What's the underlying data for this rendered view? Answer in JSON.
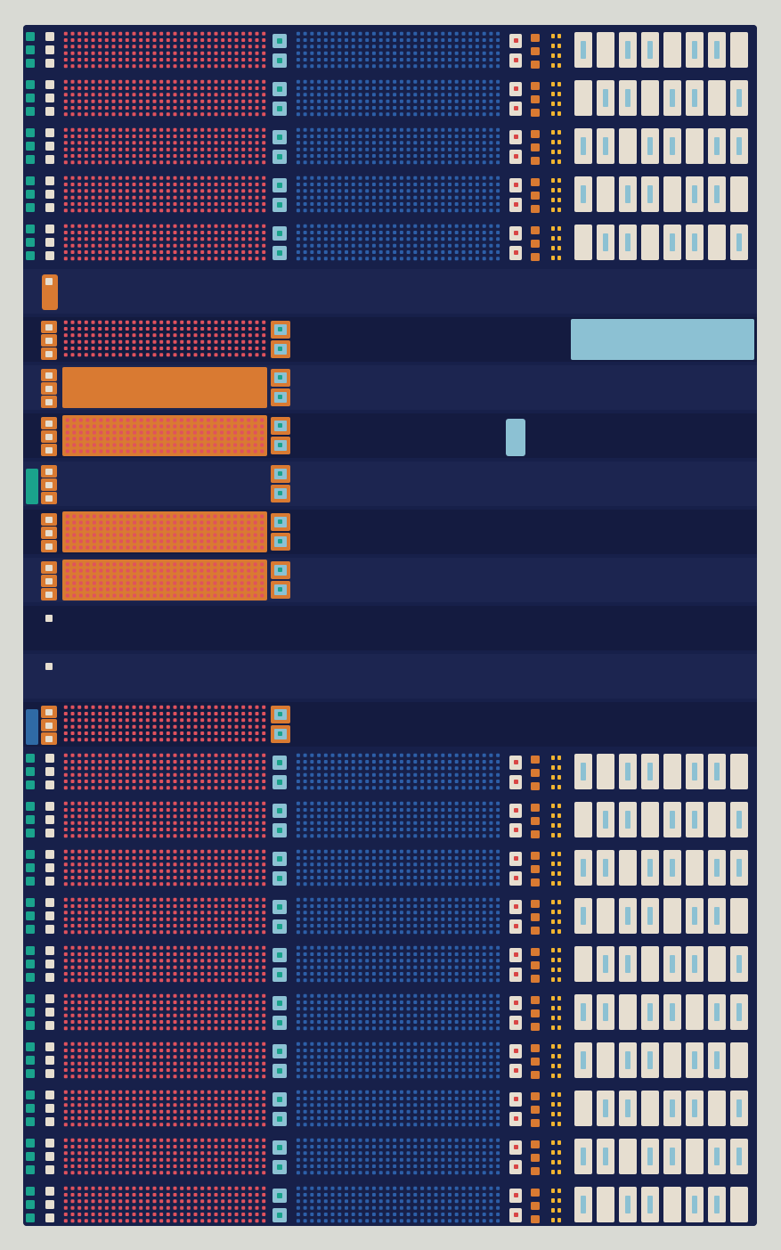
{
  "artwork": {
    "background_color": "#d9dad4",
    "rug_color": "#17204a",
    "palette": {
      "navy": "#17204a",
      "navy_dark": "#141b40",
      "navy_band": "#1c2550",
      "coral": "#e0525e",
      "blue_dot": "#2d5fa8",
      "teal": "#1aa38c",
      "cream": "#e6ded0",
      "light_blue": "#8cc1d3",
      "orange": "#d97a32",
      "yellow": "#f2b531",
      "red_dot": "#d84545",
      "steel_blue": "#2f6aa5"
    },
    "rows": [
      {
        "type": "pattern"
      },
      {
        "type": "pattern"
      },
      {
        "type": "pattern"
      },
      {
        "type": "pattern"
      },
      {
        "type": "pattern"
      },
      {
        "type": "plain",
        "orange_tab": true
      },
      {
        "type": "accent",
        "coral_dots": true,
        "light_blue_bar": true
      },
      {
        "type": "accent",
        "orange_bar": true
      },
      {
        "type": "accent",
        "orange_bar": true,
        "coral_dots_on_orange": true,
        "light_blue_tab": true
      },
      {
        "type": "accent",
        "teal_tab": true
      },
      {
        "type": "accent",
        "orange_bar": true,
        "coral_dots_on_orange": true
      },
      {
        "type": "accent",
        "orange_bar": true,
        "coral_dots_on_orange": true
      },
      {
        "type": "plain"
      },
      {
        "type": "plain",
        "orange_right_squares": false
      },
      {
        "type": "accent",
        "coral_dots": true,
        "blue_tab": true
      },
      {
        "type": "pattern"
      },
      {
        "type": "pattern"
      },
      {
        "type": "pattern"
      },
      {
        "type": "pattern"
      },
      {
        "type": "pattern"
      },
      {
        "type": "pattern"
      },
      {
        "type": "pattern"
      },
      {
        "type": "pattern"
      },
      {
        "type": "pattern"
      },
      {
        "type": "pattern"
      }
    ]
  }
}
